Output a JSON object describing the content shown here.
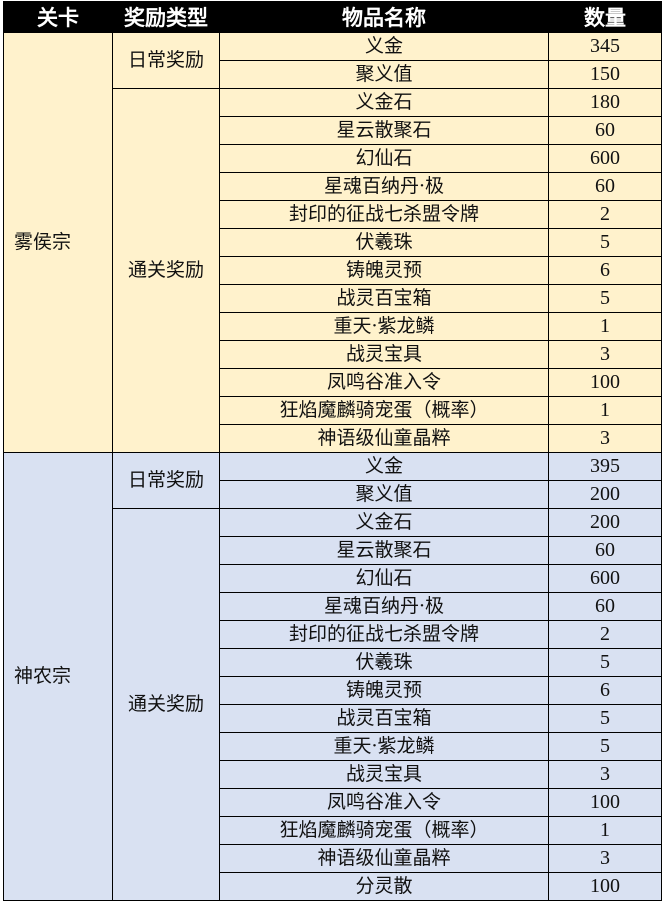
{
  "header": {
    "level": "关卡",
    "reward_type": "奖励类型",
    "item_name": "物品名称",
    "quantity": "数量"
  },
  "colors": {
    "header": "#000000",
    "section1": "#fff2cc",
    "section2": "#d9e1f2"
  },
  "sections": [
    {
      "level": "雾侯宗",
      "daily_label": "日常奖励",
      "clear_label": "通关奖励",
      "daily": [
        {
          "name": "义金",
          "qty": "345"
        },
        {
          "name": "聚义值",
          "qty": "150"
        }
      ],
      "clear": [
        {
          "name": "义金石",
          "qty": "180"
        },
        {
          "name": "星云散聚石",
          "qty": "60"
        },
        {
          "name": "幻仙石",
          "qty": "600"
        },
        {
          "name": "星魂百纳丹·极",
          "qty": "60"
        },
        {
          "name": "封印的征战七杀盟令牌",
          "qty": "2"
        },
        {
          "name": "伏羲珠",
          "qty": "5"
        },
        {
          "name": "铸魄灵预",
          "qty": "6"
        },
        {
          "name": "战灵百宝箱",
          "qty": "5"
        },
        {
          "name": "重天·紫龙鳞",
          "qty": "1"
        },
        {
          "name": "战灵宝具",
          "qty": "3"
        },
        {
          "name": "凤鸣谷准入令",
          "qty": "100"
        },
        {
          "name": "狂焰魔麟骑宠蛋（概率）",
          "qty": "1"
        },
        {
          "name": "神语级仙童晶粹",
          "qty": "3"
        }
      ]
    },
    {
      "level": "神农宗",
      "daily_label": "日常奖励",
      "clear_label": "通关奖励",
      "daily": [
        {
          "name": "义金",
          "qty": "395"
        },
        {
          "name": "聚义值",
          "qty": "200"
        }
      ],
      "clear": [
        {
          "name": "义金石",
          "qty": "200"
        },
        {
          "name": "星云散聚石",
          "qty": "60"
        },
        {
          "name": "幻仙石",
          "qty": "600"
        },
        {
          "name": "星魂百纳丹·极",
          "qty": "60"
        },
        {
          "name": "封印的征战七杀盟令牌",
          "qty": "2"
        },
        {
          "name": "伏羲珠",
          "qty": "5"
        },
        {
          "name": "铸魄灵预",
          "qty": "6"
        },
        {
          "name": "战灵百宝箱",
          "qty": "5"
        },
        {
          "name": "重天·紫龙鳞",
          "qty": "5"
        },
        {
          "name": "战灵宝具",
          "qty": "3"
        },
        {
          "name": "凤鸣谷准入令",
          "qty": "100"
        },
        {
          "name": "狂焰魔麟骑宠蛋（概率）",
          "qty": "1"
        },
        {
          "name": "神语级仙童晶粹",
          "qty": "3"
        },
        {
          "name": "分灵散",
          "qty": "100"
        }
      ]
    }
  ]
}
